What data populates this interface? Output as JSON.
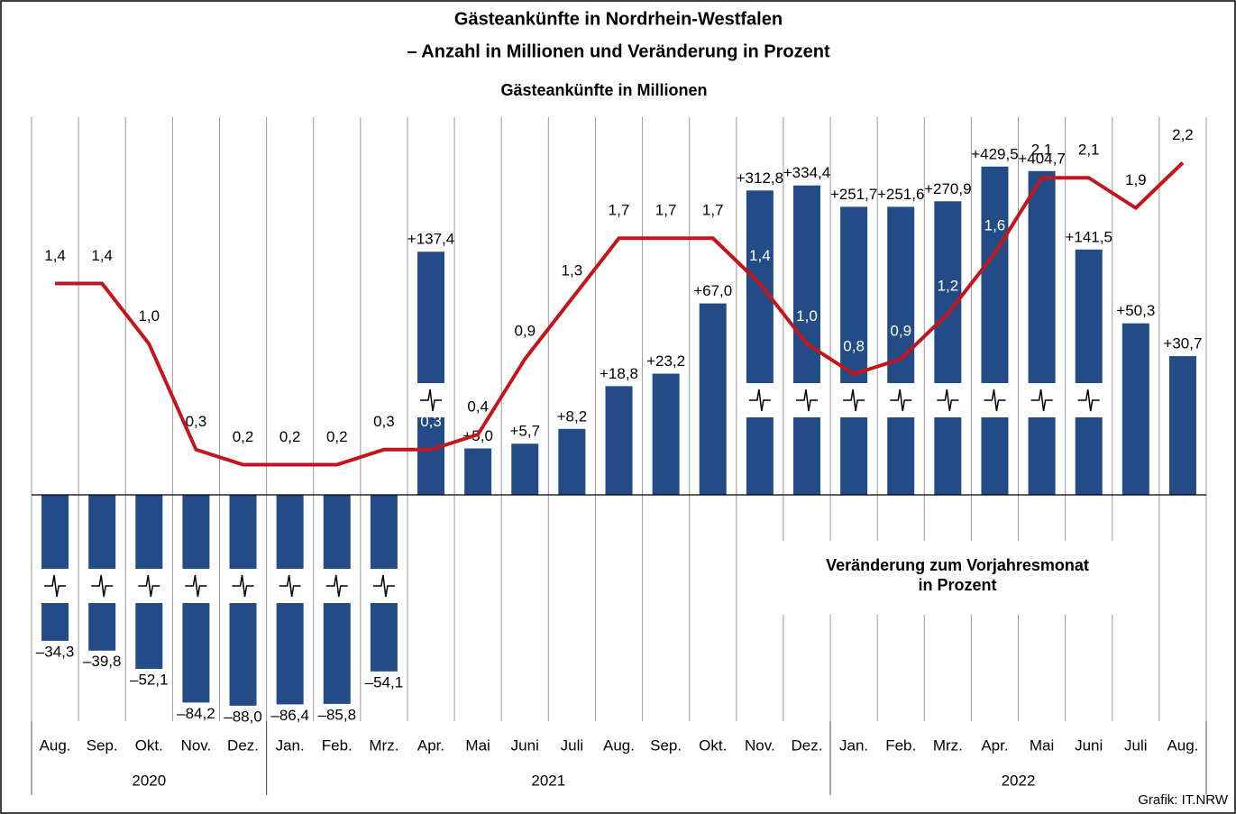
{
  "chart_data": {
    "type": "bar",
    "title": "Gästeankünfte in Nordrhein-Westfalen",
    "subtitle": "– Anzahl in Millionen und Veränderung in Prozent",
    "source": "Grafik: IT.NRW",
    "groups": [
      {
        "label": "2020",
        "categories": [
          "Aug.",
          "Sep.",
          "Okt.",
          "Nov.",
          "Dez."
        ]
      },
      {
        "label": "2021",
        "categories": [
          "Jan.",
          "Feb.",
          "Mrz.",
          "Apr.",
          "Mai",
          "Juni",
          "Juli",
          "Aug.",
          "Sep.",
          "Okt.",
          "Nov.",
          "Dez."
        ]
      },
      {
        "label": "2022",
        "categories": [
          "Jan.",
          "Feb.",
          "Mrz.",
          "Apr.",
          "Mai",
          "Juni",
          "Juli",
          "Aug."
        ]
      }
    ],
    "series": [
      {
        "type": "bar",
        "name_lines": [
          "Veränderung zum Vorjahresmonat",
          "in Prozent"
        ],
        "color": "#234b85",
        "values": [
          -34.3,
          -39.8,
          -52.1,
          -84.2,
          -88.0,
          -86.4,
          -85.8,
          -54.1,
          137.4,
          5.0,
          5.7,
          8.2,
          18.8,
          23.2,
          67.0,
          312.8,
          334.4,
          251.7,
          251.6,
          270.9,
          429.5,
          404.7,
          141.5,
          50.3,
          30.7
        ],
        "value_labels": [
          "–34,3",
          "–39,8",
          "–52,1",
          "–84,2",
          "–88,0",
          "–86,4",
          "–85,8",
          "–54,1",
          "+137,4",
          "+5,0",
          "+5,7",
          "+8,2",
          "+18,8",
          "+23,2",
          "+67,0",
          "+312,8",
          "+334,4",
          "+251,7",
          "+251,6",
          "+270,9",
          "+429,5",
          "+404,7",
          "+141,5",
          "+50,3",
          "+30,7"
        ]
      },
      {
        "type": "line",
        "name": "Gästeankünfte in Millionen",
        "color": "#c3161c",
        "axis": "y2",
        "values": [
          1.4,
          1.4,
          1.0,
          0.3,
          0.2,
          0.2,
          0.2,
          0.3,
          0.3,
          0.4,
          0.9,
          1.3,
          1.7,
          1.7,
          1.7,
          1.4,
          1.0,
          0.8,
          0.9,
          1.2,
          1.6,
          2.1,
          2.1,
          1.9,
          2.2
        ],
        "value_labels": [
          "1,4",
          "1,4",
          "1,0",
          "0,3",
          "0,2",
          "0,2",
          "0,2",
          "0,3",
          "0,3",
          "0,4",
          "0,9",
          "1,3",
          "1,7",
          "1,7",
          "1,7",
          "1,4",
          "1,0",
          "0,8",
          "0,9",
          "1,2",
          "1,6",
          "2,1",
          "2,1",
          "1,9",
          "2,2"
        ]
      }
    ]
  }
}
